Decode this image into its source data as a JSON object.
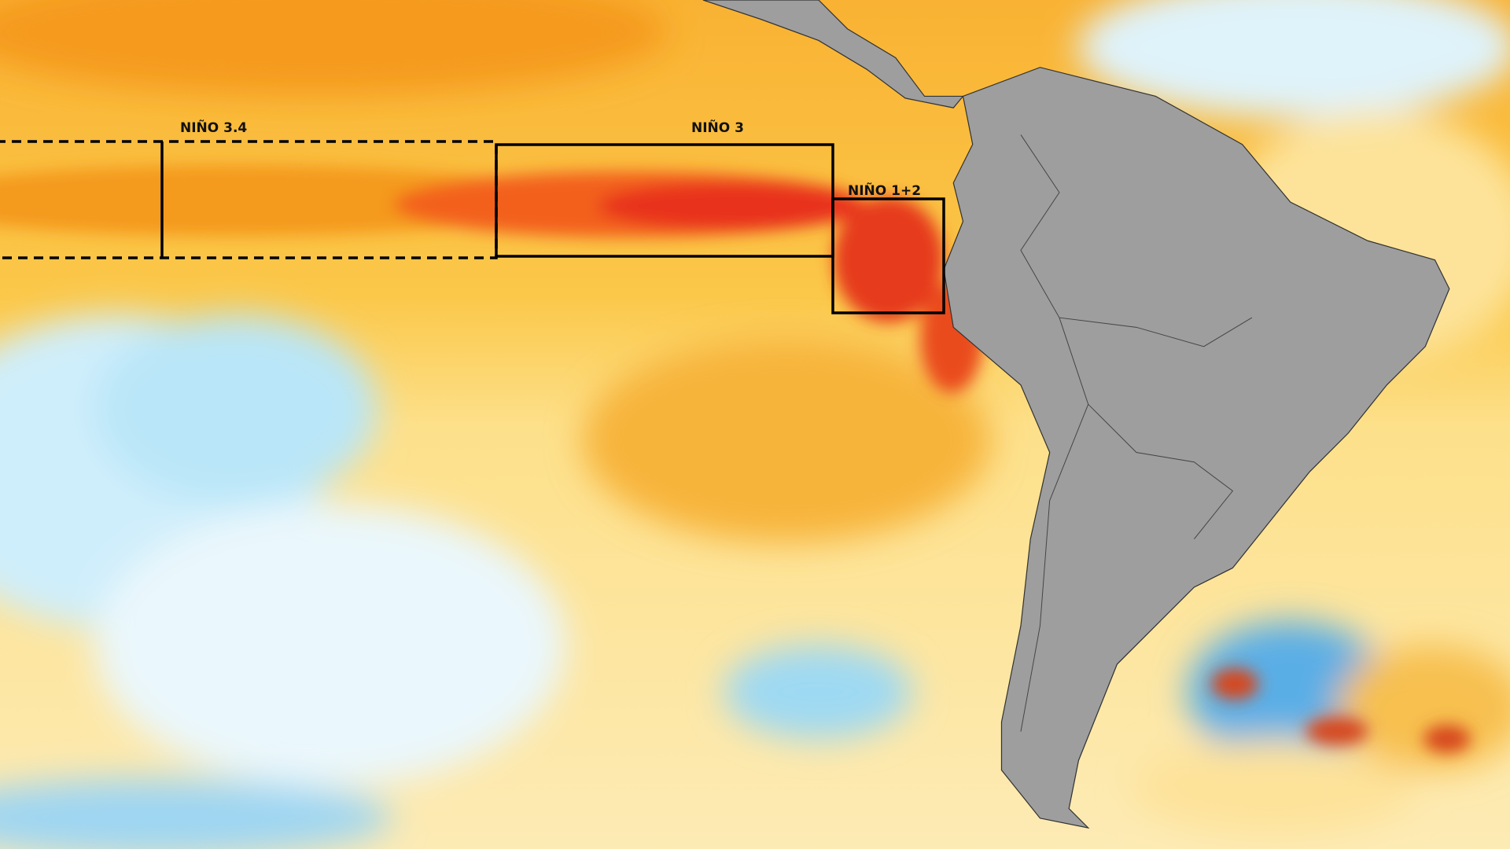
{
  "regions": [
    {
      "label": "NIÑO 3.4"
    },
    {
      "label": "NIÑO 3"
    },
    {
      "label": "NIÑO 1+2"
    }
  ]
}
